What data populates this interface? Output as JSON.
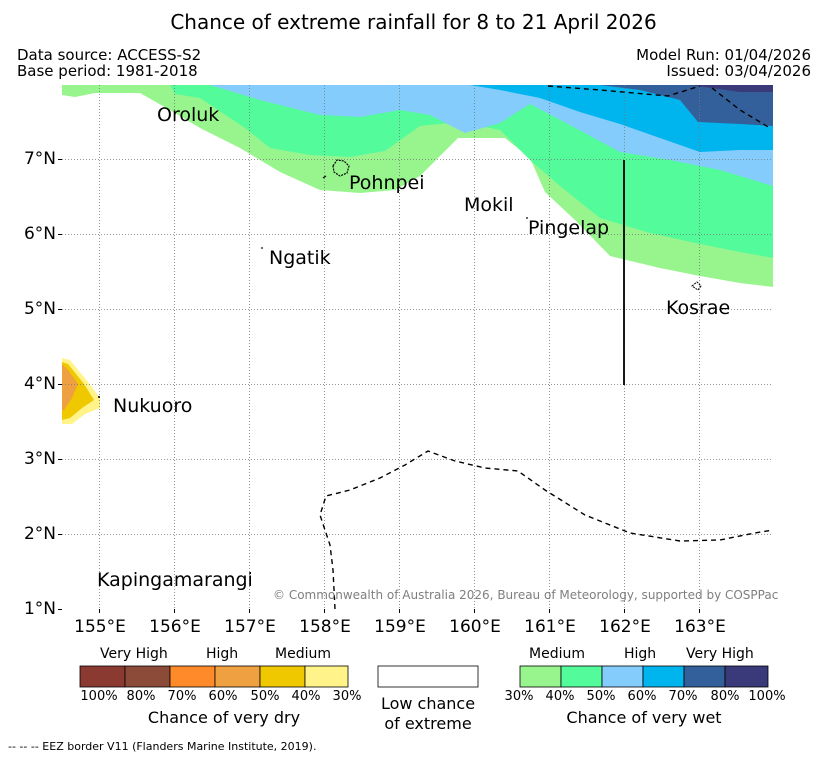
{
  "title": "Chance of extreme rainfall for 8 to 21 April 2026",
  "data_source": "Data source: ACCESS-S2",
  "base_period": "Base period: 1981-2018",
  "model_run": "Model Run: 01/04/2026",
  "issued": "Issued: 03/04/2026",
  "axes": {
    "lat_labels": [
      "7°N",
      "6°N",
      "5°N",
      "4°N",
      "3°N",
      "2°N",
      "1°N"
    ],
    "lon_labels": [
      "155°E",
      "156°E",
      "157°E",
      "158°E",
      "159°E",
      "160°E",
      "161°E",
      "162°E",
      "163°E"
    ]
  },
  "places": {
    "oroluk": "Oroluk",
    "pohnpei": "Pohnpei",
    "mokil": "Mokil",
    "pingelap": "Pingelap",
    "ngatik": "Ngatik",
    "kosrae": "Kosrae",
    "nukuoro": "Nukuoro",
    "kapingamarangi": "Kapingamarangi"
  },
  "copyright": "© Commonwealth of Australia 2026, Bureau of Meteorology, supported by COSPPac",
  "legend_dry": {
    "categories": [
      "Very High",
      "High",
      "Medium"
    ],
    "colors": [
      "#8b3a32",
      "#8c4a38",
      "#fe8a2a",
      "#efa040",
      "#f0c800",
      "#fff38a"
    ],
    "percentages": [
      "100%",
      "80%",
      "70%",
      "60%",
      "50%",
      "40%",
      "30%"
    ],
    "title": "Chance of very dry"
  },
  "legend_low": {
    "line1": "Low chance",
    "line2": "of extreme"
  },
  "legend_wet": {
    "categories": [
      "Medium",
      "High",
      "Very High"
    ],
    "colors": [
      "#98f58e",
      "#54fb9a",
      "#84ccfc",
      "#00b4ee",
      "#33609a",
      "#3a3a7a"
    ],
    "percentages": [
      "30%",
      "40%",
      "50%",
      "60%",
      "70%",
      "80%",
      "100%"
    ],
    "title": "Chance of very wet"
  },
  "eez_note": "--  --  -- EEZ border V11 (Flanders Marine Institute, 2019)."
}
